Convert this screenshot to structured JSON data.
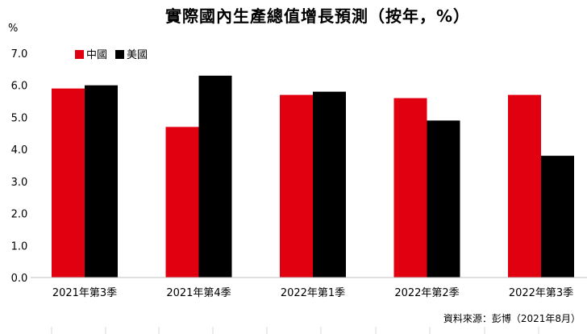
{
  "chart_data": {
    "type": "bar",
    "title": "實際國內生產總值增長預測（按年，%）",
    "ylabel": "%",
    "ylim": [
      0,
      7
    ],
    "yticks": [
      "0.0",
      "1.0",
      "2.0",
      "3.0",
      "4.0",
      "5.0",
      "6.0",
      "7.0"
    ],
    "categories": [
      "2021年第3季",
      "2021年第4季",
      "2022年第1季",
      "2022年第2季",
      "2022年第3季"
    ],
    "series": [
      {
        "name": "中國",
        "color": "#e0000f",
        "values": [
          5.9,
          4.7,
          5.7,
          5.6,
          5.7
        ]
      },
      {
        "name": "美國",
        "color": "#000000",
        "values": [
          6.0,
          6.3,
          5.8,
          4.9,
          3.8
        ]
      }
    ],
    "legend_position": "top-left",
    "grid": false,
    "source": "資料來源：彭博（2021年8月）"
  }
}
